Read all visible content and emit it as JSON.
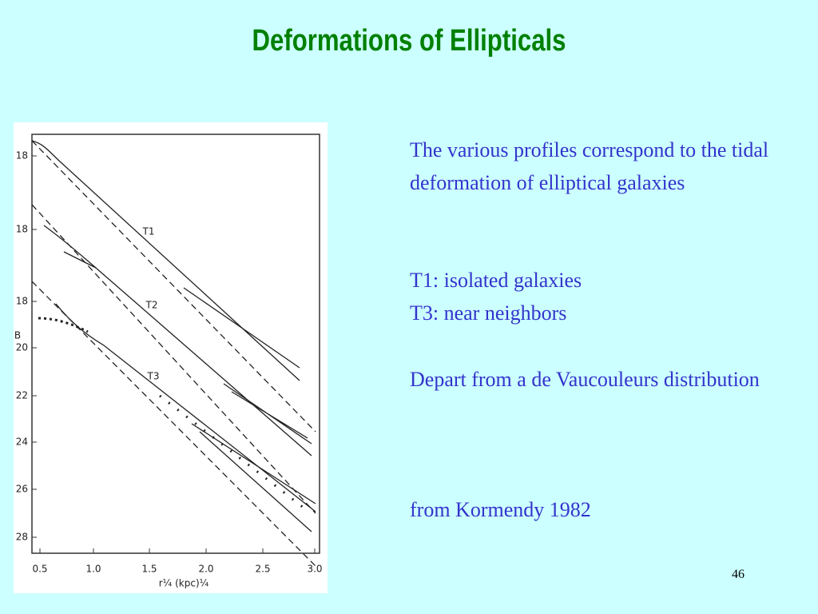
{
  "title": "Deformations of Ellipticals",
  "figure": {
    "y_label": "B",
    "y_tick_labels": [
      "18",
      "18",
      "18",
      "20",
      "22",
      "24",
      "26",
      "28"
    ],
    "x_tick_labels": [
      "0.5",
      "1.0",
      "1.5",
      "2.0",
      "2.5",
      "3.0"
    ],
    "x_label": "r¼ (kpc)¼",
    "curve_labels": [
      "T1",
      "T2",
      "T3"
    ]
  },
  "text": {
    "items": [
      "The various profiles correspond to the tidal deformation of elliptical galaxies",
      "T1: isolated galaxies",
      "T3: near neighbors",
      "Depart from a de Vaucouleurs distribution",
      "from Kormendy 1982"
    ]
  },
  "page_number": "46"
}
